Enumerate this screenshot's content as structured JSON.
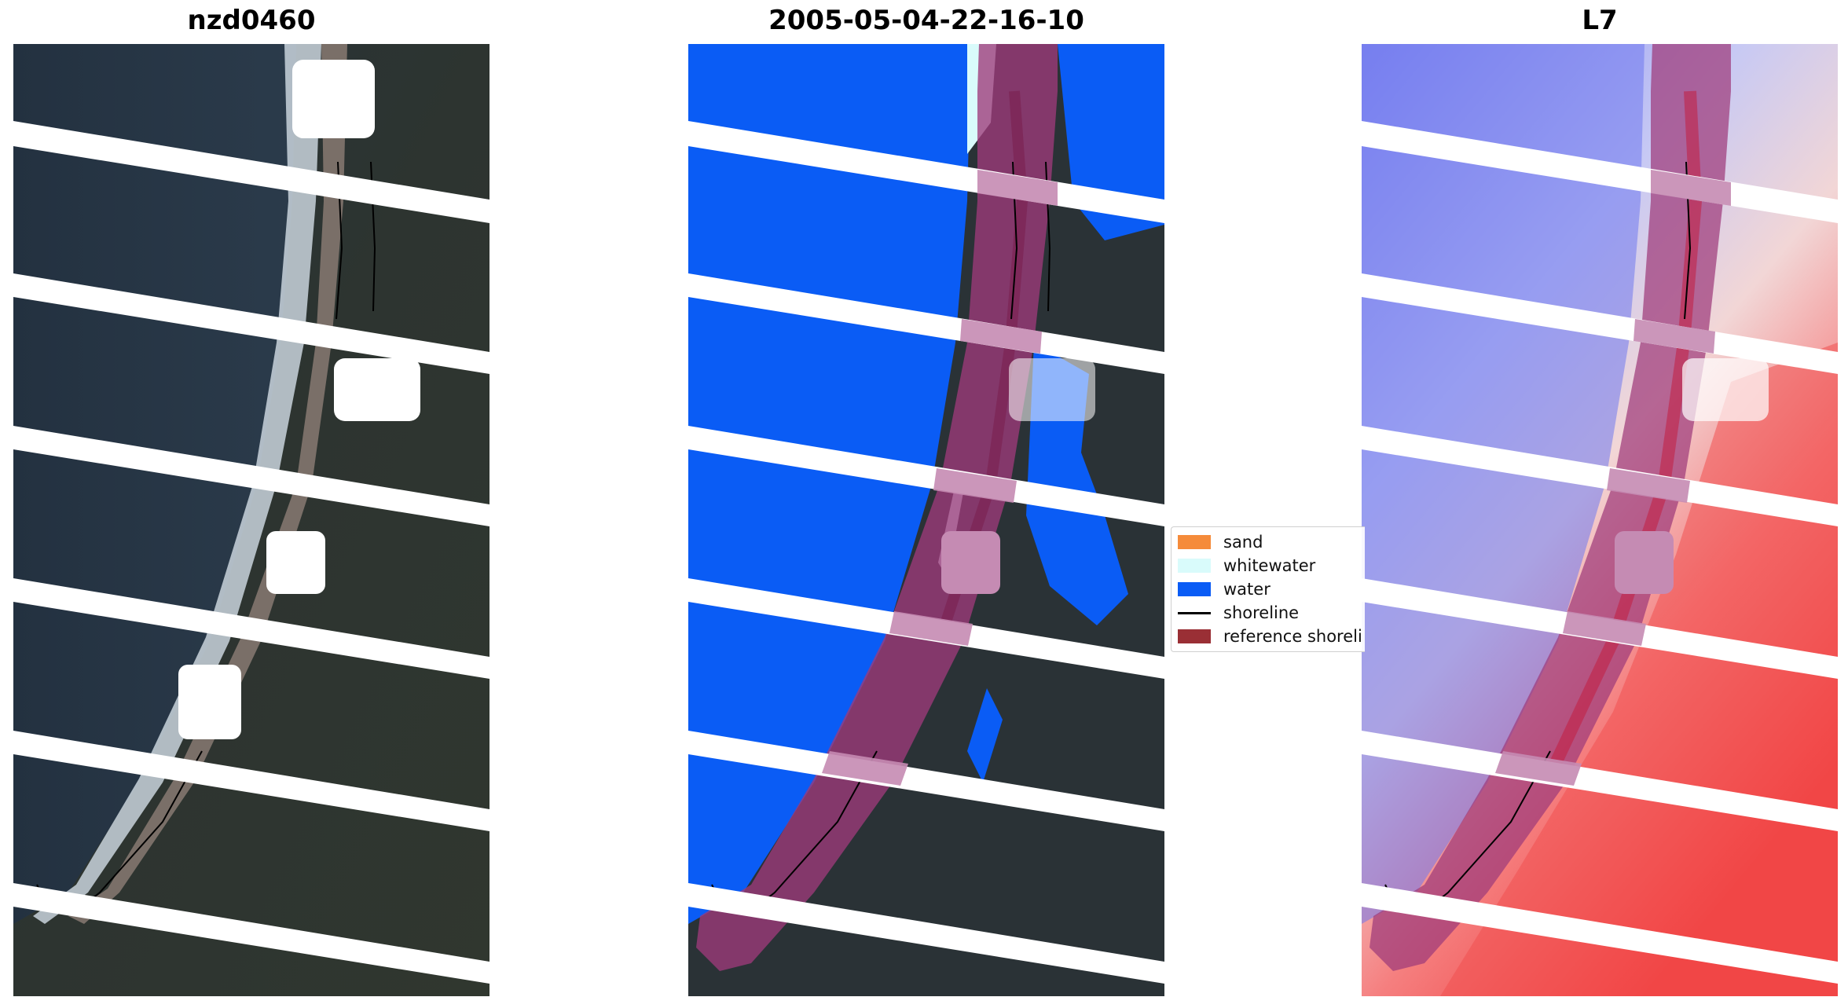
{
  "panels": {
    "rgb": {
      "title": "nzd0460"
    },
    "classified": {
      "title": "2005-05-04-22-16-10"
    },
    "index": {
      "title": "L7"
    }
  },
  "legend": {
    "items": [
      {
        "label": "sand",
        "color": "#f58b3a",
        "kind": "patch"
      },
      {
        "label": "whitewater",
        "color": "#d9fbfb",
        "kind": "patch"
      },
      {
        "label": "water",
        "color": "#0a5cf5",
        "kind": "patch"
      },
      {
        "label": "shoreline",
        "color": "#000000",
        "kind": "line"
      },
      {
        "label": "reference shoreli",
        "color": "#9a2f35",
        "kind": "patch"
      }
    ]
  },
  "colors": {
    "land": "#2a3236",
    "surf": "#c9d4dc",
    "beach": "#7a6f68",
    "water": "#0a5cf5",
    "whitewater": "#d9fbfb",
    "reference_buffer": "#9e3a7a",
    "index_positive": "#ff2a2a",
    "index_negative": "#2a36ff"
  }
}
